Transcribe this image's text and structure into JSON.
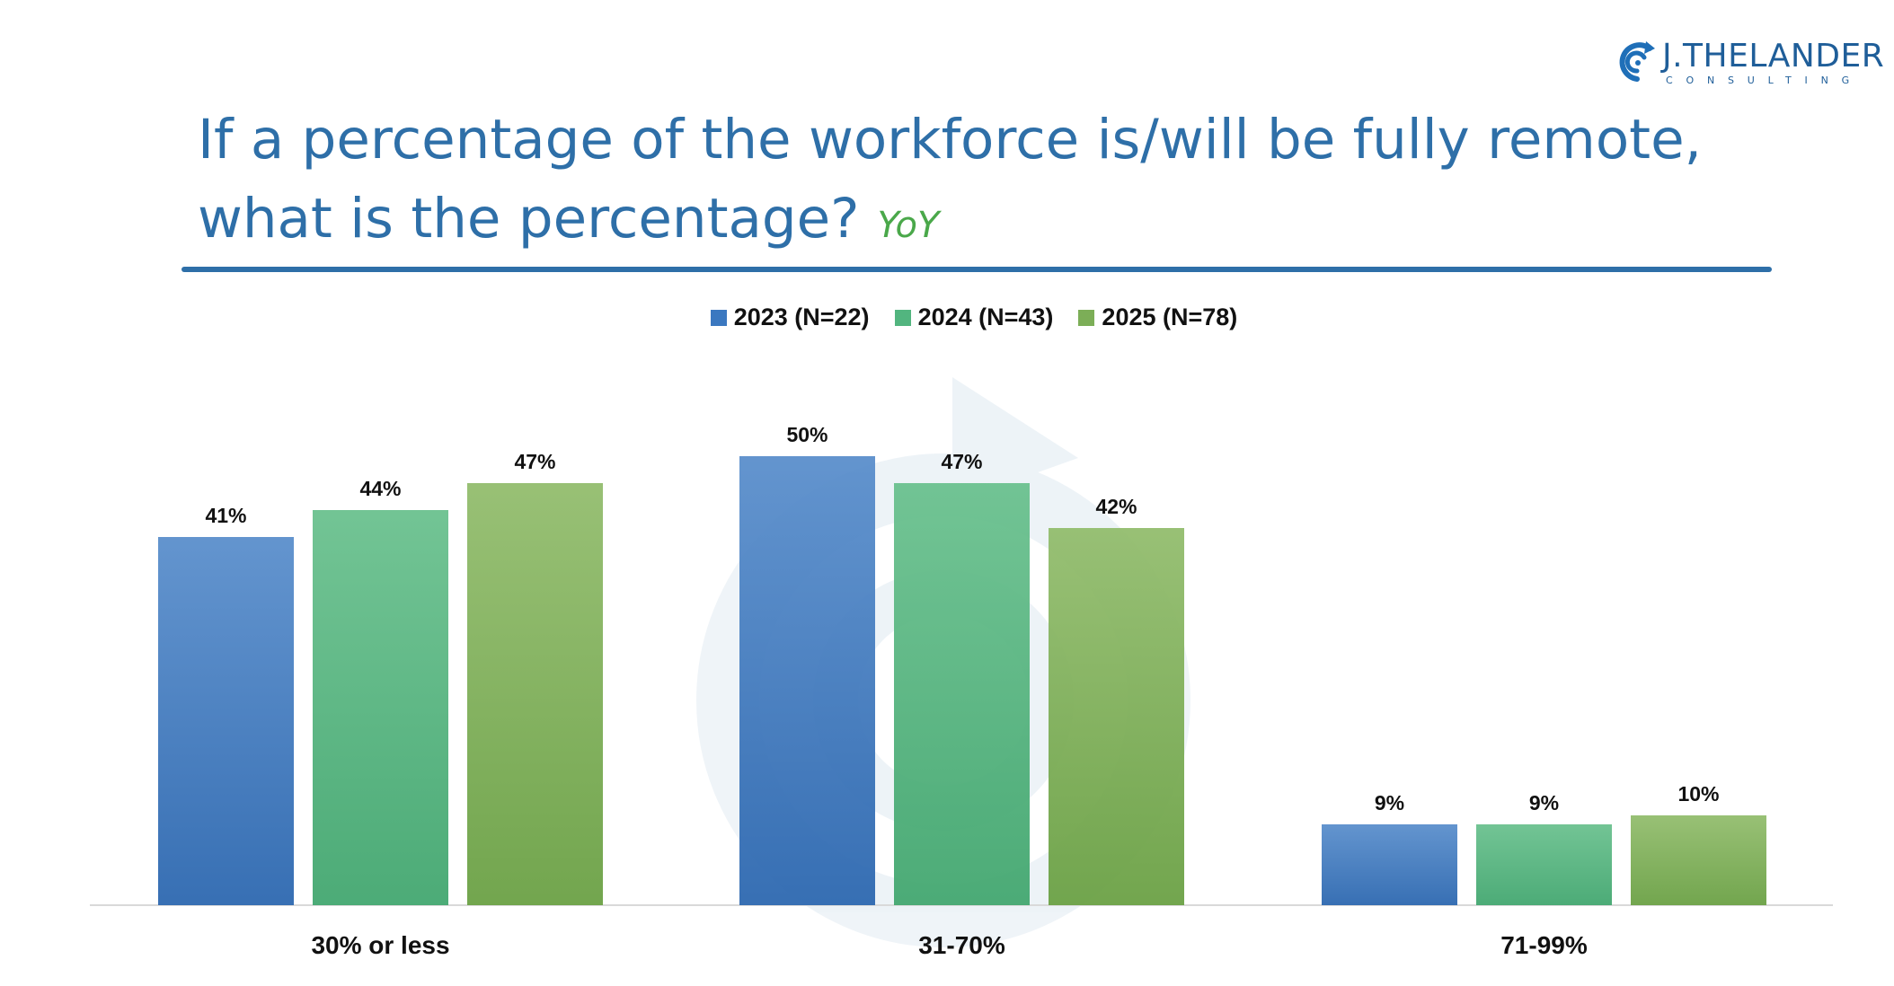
{
  "logo": {
    "name": "J.THELANDER",
    "tagline": "CONSULTING"
  },
  "chart_data": {
    "type": "bar",
    "title": "If a percentage of the workforce is/will be fully remote, what is the percentage?",
    "title_line1": "If a percentage of the workforce is/will be fully remote,",
    "title_line2": "what is the percentage?",
    "subtitle": "YoY",
    "categories": [
      "30% or less",
      "31-70%",
      "71-99%"
    ],
    "series": [
      {
        "name": "2023 (N=22)",
        "values": [
          41,
          50,
          9
        ],
        "labels": [
          "41%",
          "50%",
          "9%"
        ],
        "color": "#3b78c0",
        "color_top": "#5b8fcc",
        "color_bottom": "#2d68b0"
      },
      {
        "name": "2024 (N=43)",
        "values": [
          44,
          47,
          9
        ],
        "labels": [
          "44%",
          "47%",
          "9%"
        ],
        "color": "#52b57f",
        "color_top": "#6bc18f",
        "color_bottom": "#43a770"
      },
      {
        "name": "2025 (N=78)",
        "values": [
          47,
          42,
          10
        ],
        "labels": [
          "47%",
          "42%",
          "10%"
        ],
        "color": "#7cae57",
        "color_top": "#93bd6e",
        "color_bottom": "#6ba145"
      }
    ],
    "ylim": [
      0,
      50
    ],
    "xlabel": "",
    "ylabel": "",
    "grid": false,
    "legend_position": "top-center"
  }
}
